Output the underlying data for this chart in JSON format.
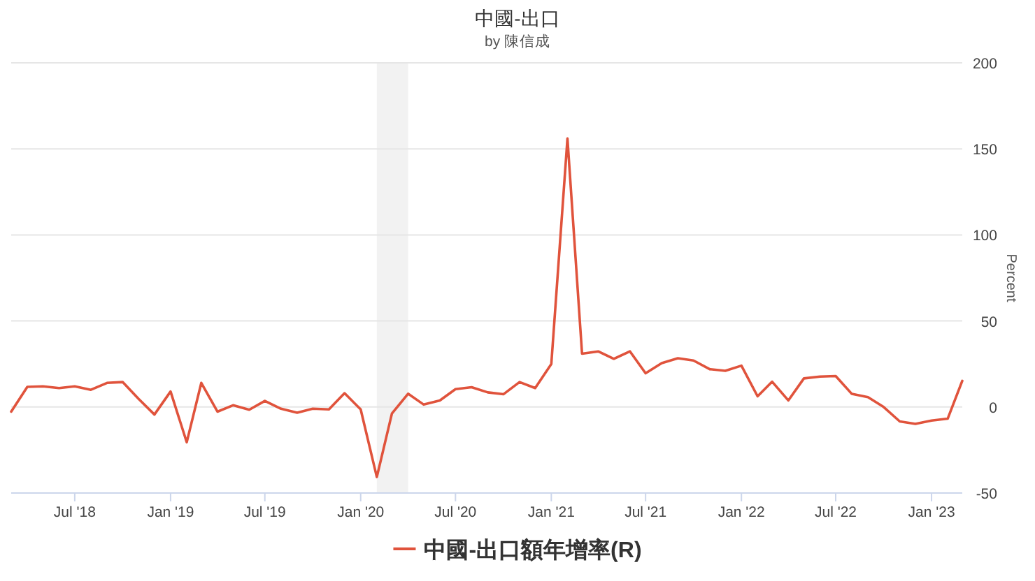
{
  "chart_data": {
    "type": "line",
    "title": "中國-出口",
    "subtitle": "by 陳信成",
    "ylabel": "Percent",
    "x": [
      "2018-03",
      "2018-04",
      "2018-05",
      "2018-06",
      "2018-07",
      "2018-08",
      "2018-09",
      "2018-10",
      "2018-11",
      "2018-12",
      "2019-01",
      "2019-02",
      "2019-03",
      "2019-04",
      "2019-05",
      "2019-06",
      "2019-07",
      "2019-08",
      "2019-09",
      "2019-10",
      "2019-11",
      "2019-12",
      "2020-01",
      "2020-02",
      "2020-03",
      "2020-04",
      "2020-05",
      "2020-06",
      "2020-07",
      "2020-08",
      "2020-09",
      "2020-10",
      "2020-11",
      "2020-12",
      "2021-01",
      "2021-02",
      "2021-03",
      "2021-04",
      "2021-05",
      "2021-06",
      "2021-07",
      "2021-08",
      "2021-09",
      "2021-10",
      "2021-11",
      "2021-12",
      "2022-01",
      "2022-02",
      "2022-03",
      "2022-04",
      "2022-05",
      "2022-06",
      "2022-07",
      "2022-08",
      "2022-09",
      "2022-10",
      "2022-11",
      "2022-12",
      "2023-01",
      "2023-02",
      "2023-03"
    ],
    "series": [
      {
        "name": "中國-出口額年增率(R)",
        "color": "#e0533c",
        "values": [
          -2.7,
          11.7,
          12,
          11,
          12,
          10,
          14,
          14.5,
          4.6,
          -4.4,
          9,
          -20.5,
          14,
          -2.7,
          1,
          -1.6,
          3.5,
          -1,
          -3.3,
          -1,
          -1.4,
          8,
          -1.4,
          -40.7,
          -3.8,
          7.7,
          1.4,
          3.8,
          10.4,
          11.5,
          8.5,
          7.4,
          14.5,
          11,
          25,
          156,
          31,
          32.3,
          28,
          32.3,
          19.6,
          25.5,
          28.3,
          27,
          22,
          21,
          24,
          6.2,
          14.7,
          3.8,
          16.6,
          17.7,
          18,
          7.6,
          5.7,
          0,
          -8.4,
          -9.8,
          -7.9,
          -6.8,
          15.2
        ]
      }
    ],
    "xlim": [
      "2018-03",
      "2023-03"
    ],
    "xticks": [
      {
        "value": "2018-07",
        "label": "Jul '18"
      },
      {
        "value": "2019-01",
        "label": "Jan '19"
      },
      {
        "value": "2019-07",
        "label": "Jul '19"
      },
      {
        "value": "2020-01",
        "label": "Jan '20"
      },
      {
        "value": "2020-07",
        "label": "Jul '20"
      },
      {
        "value": "2021-01",
        "label": "Jan '21"
      },
      {
        "value": "2021-07",
        "label": "Jul '21"
      },
      {
        "value": "2022-01",
        "label": "Jan '22"
      },
      {
        "value": "2022-07",
        "label": "Jul '22"
      },
      {
        "value": "2023-01",
        "label": "Jan '23"
      }
    ],
    "ylim": [
      -50,
      200
    ],
    "yticks": [
      -50,
      0,
      50,
      100,
      150,
      200
    ],
    "bands": [
      {
        "axis": "x",
        "from": "2020-02",
        "to": "2020-04",
        "color": "#f2f2f2"
      }
    ],
    "grid": "y",
    "legend": "bottom",
    "marker": "none",
    "line_style": "solid"
  }
}
